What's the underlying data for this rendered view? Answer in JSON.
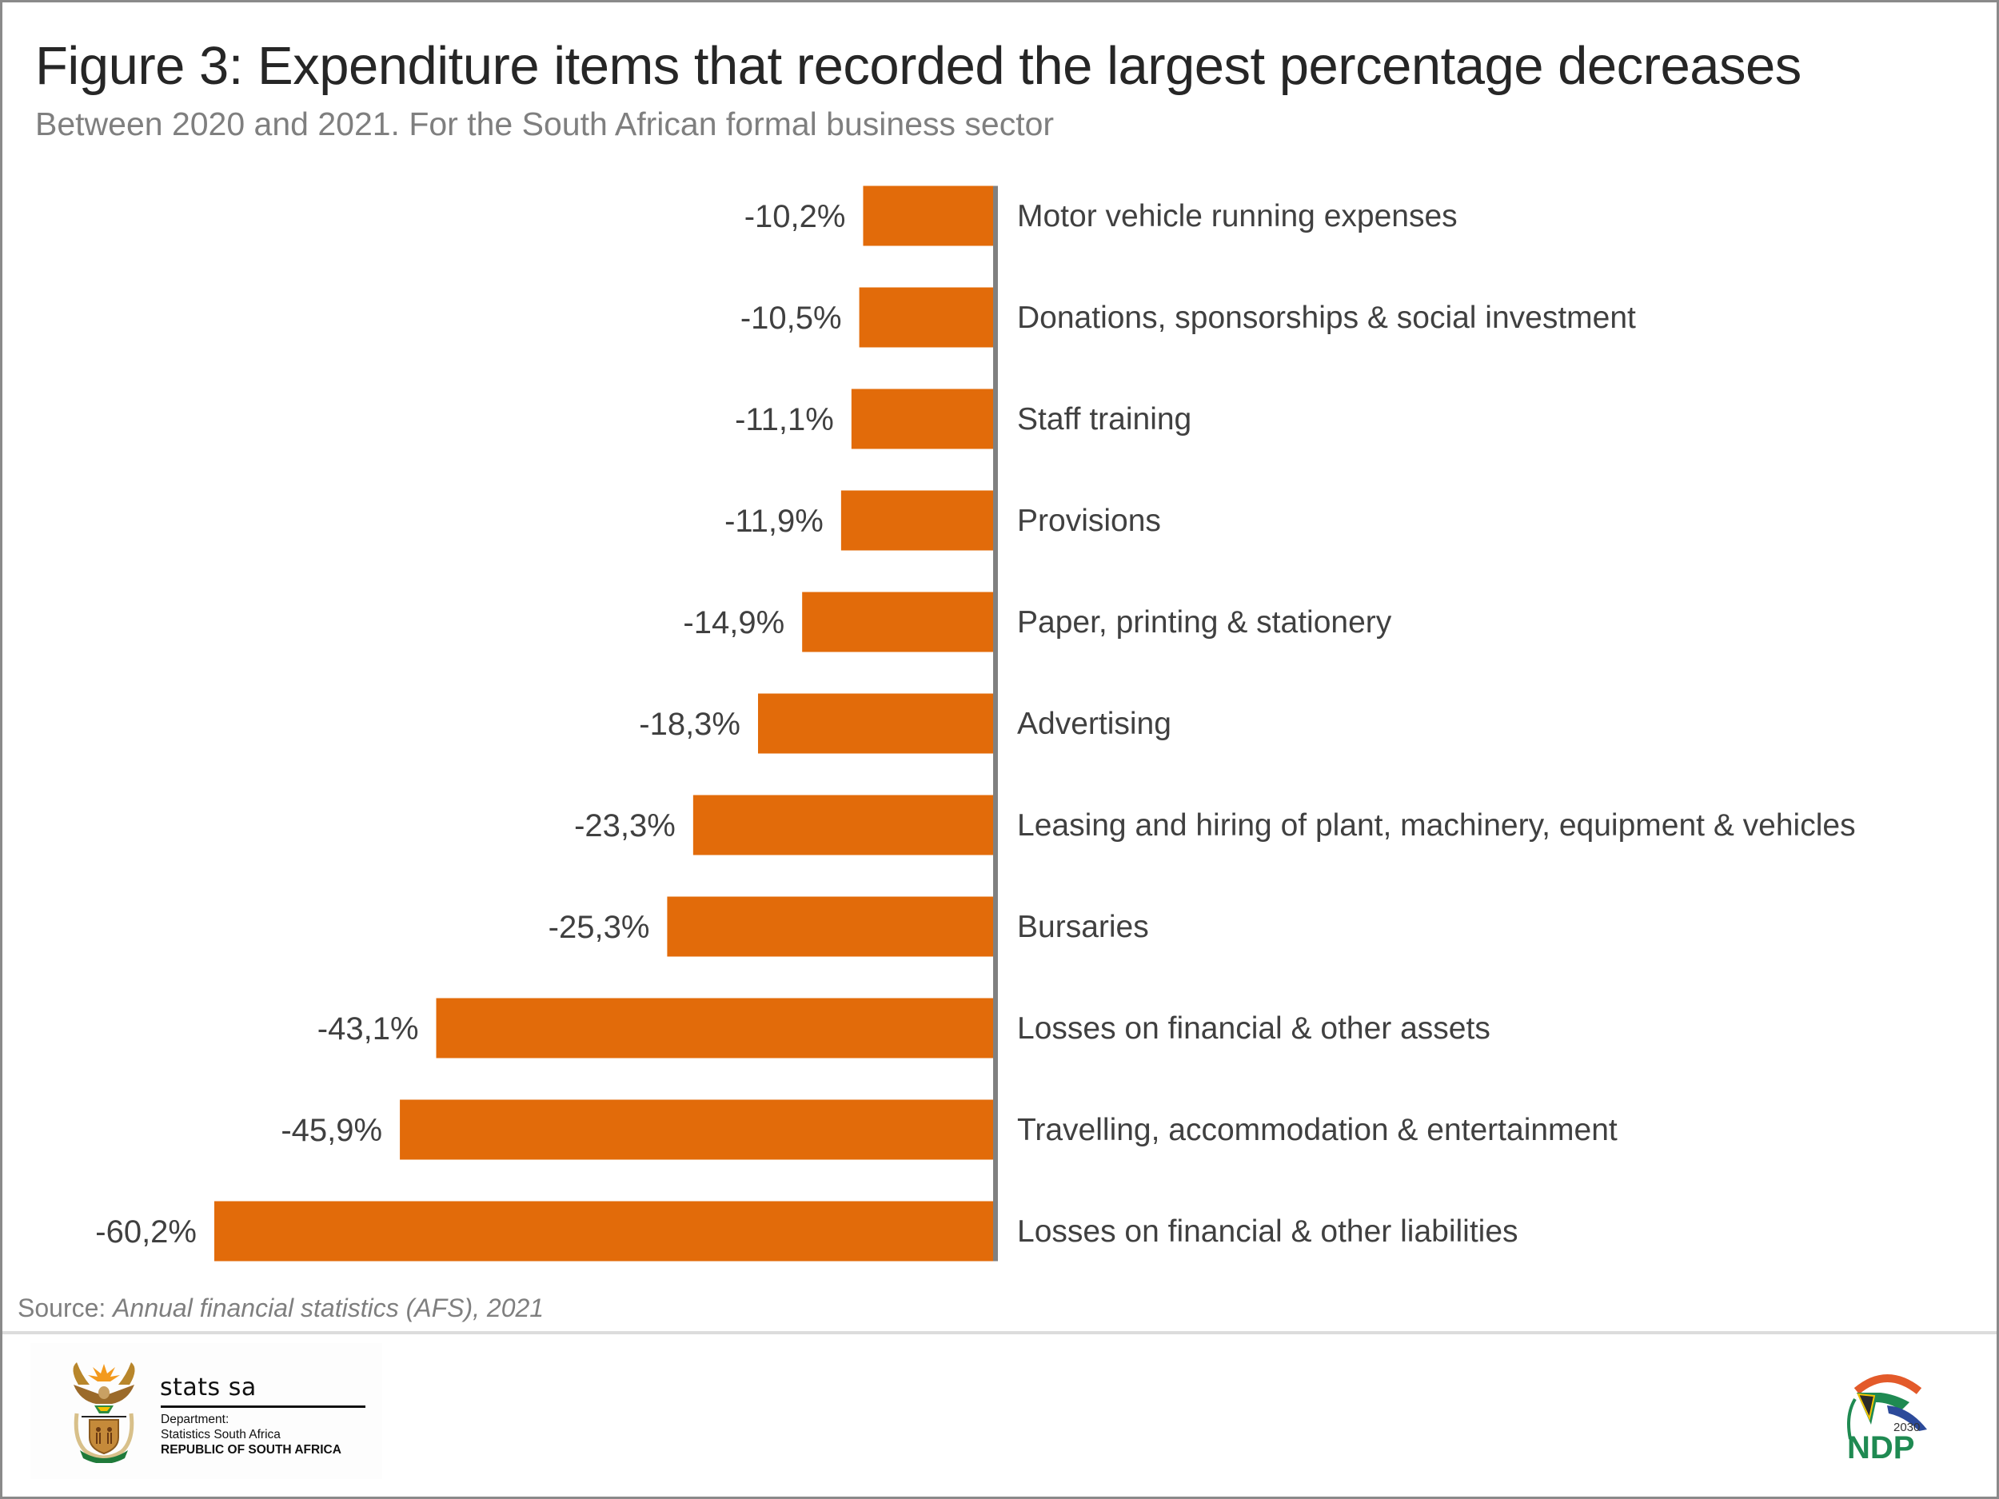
{
  "header": {
    "title": "Figure 3: Expenditure items that recorded the largest percentage decreases",
    "subtitle": "Between 2020 and 2021. For the South African formal business sector"
  },
  "chart_data": {
    "type": "bar",
    "orientation": "horizontal",
    "title": "Figure 3: Expenditure items that recorded the largest percentage decreases",
    "subtitle": "Between 2020 and 2021. For the South African formal business sector",
    "xlabel": "",
    "ylabel": "",
    "units": "%",
    "xlim": [
      -60.2,
      0
    ],
    "grid": false,
    "legend": "none",
    "bar_color": "#E26B0A",
    "axis_color": "#808080",
    "categories": [
      "Motor vehicle running expenses",
      "Donations, sponsorships & social investment",
      "Staff training",
      "Provisions",
      "Paper, printing & stationery",
      "Advertising",
      "Leasing and hiring of plant, machinery, equipment & vehicles",
      "Bursaries",
      "Losses on financial & other assets",
      "Travelling, accommodation & entertainment",
      "Losses on financial & other liabilities"
    ],
    "values": [
      -10.2,
      -10.5,
      -11.1,
      -11.9,
      -14.9,
      -18.3,
      -23.3,
      -25.3,
      -43.1,
      -45.9,
      -60.2
    ],
    "data_labels": [
      "-10,2%",
      "-10,5%",
      "-11,1%",
      "-11,9%",
      "-14,9%",
      "-18,3%",
      "-23,3%",
      "-25,3%",
      "-43,1%",
      "-45,9%",
      "-60,2%"
    ]
  },
  "footer": {
    "source_prefix": "Source: ",
    "source_text": "Annual financial statistics (AFS), 2021",
    "logo_left": {
      "name": "stats sa",
      "line1": "Department:",
      "line2": "Statistics South Africa",
      "line3": "REPUBLIC OF SOUTH AFRICA"
    },
    "logo_right": {
      "year": "2030",
      "name": "NDP"
    }
  }
}
